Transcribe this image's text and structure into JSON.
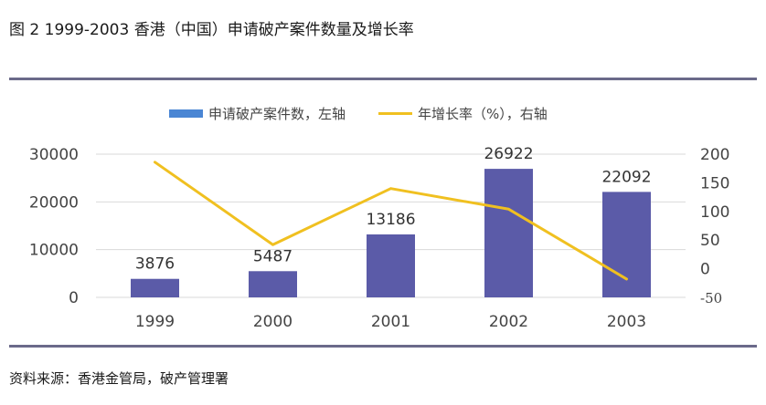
{
  "title": "图  2 1999-2003 香港（中国）申请破产案件数量及增长率",
  "source": "资料来源：香港金管局，破产管理署",
  "legend": {
    "bar_label": "申请破产案件数，左轴",
    "line_label": "年增长率（%），右轴"
  },
  "colors": {
    "bar": "#5b5ba8",
    "legend_bar": "#4a86d4",
    "line": "#f0c020",
    "rule": "#6b6a8a",
    "grid": "#d9d9d9"
  },
  "chart_data": {
    "type": "bar+line",
    "title": "图 2 1999-2003 香港（中国）申请破产案件数量及增长率",
    "categories": [
      "1999",
      "2000",
      "2001",
      "2002",
      "2003"
    ],
    "series": [
      {
        "name": "申请破产案件数，左轴",
        "type": "bar",
        "axis": "left",
        "values": [
          3876,
          5487,
          13186,
          26922,
          22092
        ]
      },
      {
        "name": "年增长率（%），右轴",
        "type": "line",
        "axis": "right",
        "values": [
          186,
          42,
          140,
          104,
          -18
        ]
      }
    ],
    "left_axis": {
      "ticks": [
        "0",
        "10000",
        "20000",
        "30000"
      ],
      "ylim": [
        0,
        30000
      ]
    },
    "right_axis": {
      "ticks": [
        "-50",
        "0",
        "50",
        "100",
        "150",
        "200"
      ],
      "ylim": [
        -50,
        200
      ]
    },
    "data_labels": [
      "3876",
      "5487",
      "13186",
      "26922",
      "22092"
    ],
    "grid": true,
    "legend_position": "top"
  }
}
